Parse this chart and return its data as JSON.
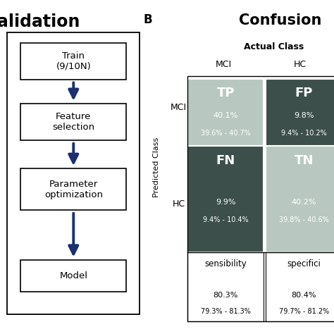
{
  "flowchart_boxes": [
    "Train\n(9/10N)",
    "Feature\nselection",
    "Parameter\noptimization",
    "Model"
  ],
  "cm_labels": [
    [
      "TP",
      "FP"
    ],
    [
      "FN",
      "TN"
    ]
  ],
  "cm_colors": [
    [
      "#b8c8c0",
      "#3d4f4a"
    ],
    [
      "#3d4f4a",
      "#b8c8c0"
    ]
  ],
  "cm_values_line1": [
    [
      "40.1%",
      "9.8%"
    ],
    [
      "9.9%",
      "40.2%"
    ]
  ],
  "cm_values_line2": [
    [
      "39.6% - 40.7%",
      "9.4% - 10.2%"
    ],
    [
      "9.4% - 10.4%",
      "39.8% - 40.6%"
    ]
  ],
  "bottom_labels": [
    "sensibility",
    "specifici"
  ],
  "bottom_values_line1": [
    "80.3%",
    "80.4%"
  ],
  "bottom_values_line2": [
    "79.3% - 81.3%",
    "79.7% - 81.2%"
  ],
  "box_edge_color": "#000000",
  "arrow_color": "#1a3070",
  "bg_color": "#ffffff"
}
